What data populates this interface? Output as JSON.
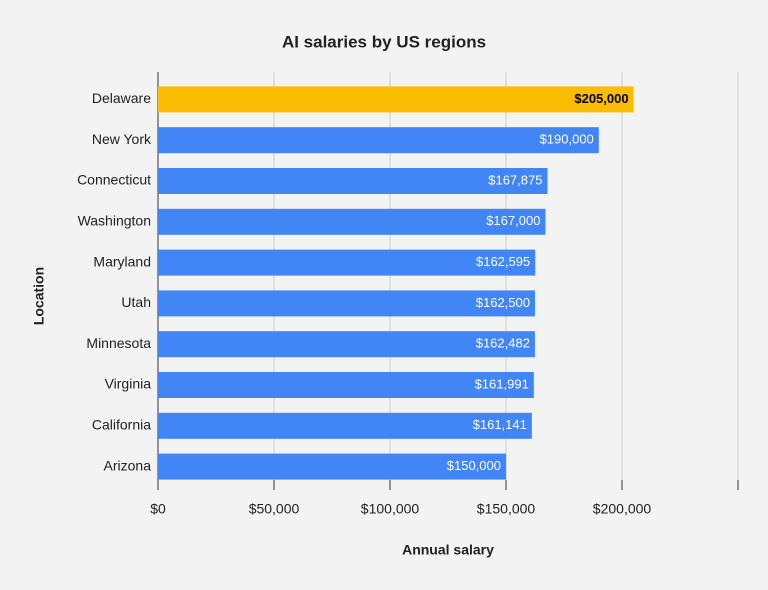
{
  "chart_data": {
    "type": "hbar",
    "title": "AI salaries by US regions",
    "x_label": "Annual salary",
    "y_label": "Location",
    "categories": [
      "Delaware",
      "New York",
      "Connecticut",
      "Washington",
      "Maryland",
      "Utah",
      "Minnesota",
      "Virginia",
      "California",
      "Arizona"
    ],
    "values": [
      205000,
      190000,
      167875,
      167000,
      162595,
      162500,
      162482,
      161991,
      161141,
      150000
    ],
    "value_labels": [
      "$205,000",
      "$190,000",
      "$167,875",
      "$167,000",
      "$162,595",
      "$162,500",
      "$162,482",
      "$161,991",
      "$161,141",
      "$150,000"
    ],
    "colors": [
      "#fbbc04",
      "#4285f4",
      "#4285f4",
      "#4285f4",
      "#4285f4",
      "#4285f4",
      "#4285f4",
      "#4285f4",
      "#4285f4",
      "#4285f4"
    ],
    "xlim": [
      0,
      250000
    ],
    "xticks": [
      {
        "value": 0,
        "label": "$0"
      },
      {
        "value": 50000,
        "label": "$50,000"
      },
      {
        "value": 100000,
        "label": "$100,000"
      },
      {
        "value": 150000,
        "label": "$150,000"
      },
      {
        "value": 200000,
        "label": "$200,000"
      }
    ],
    "grid": true
  }
}
